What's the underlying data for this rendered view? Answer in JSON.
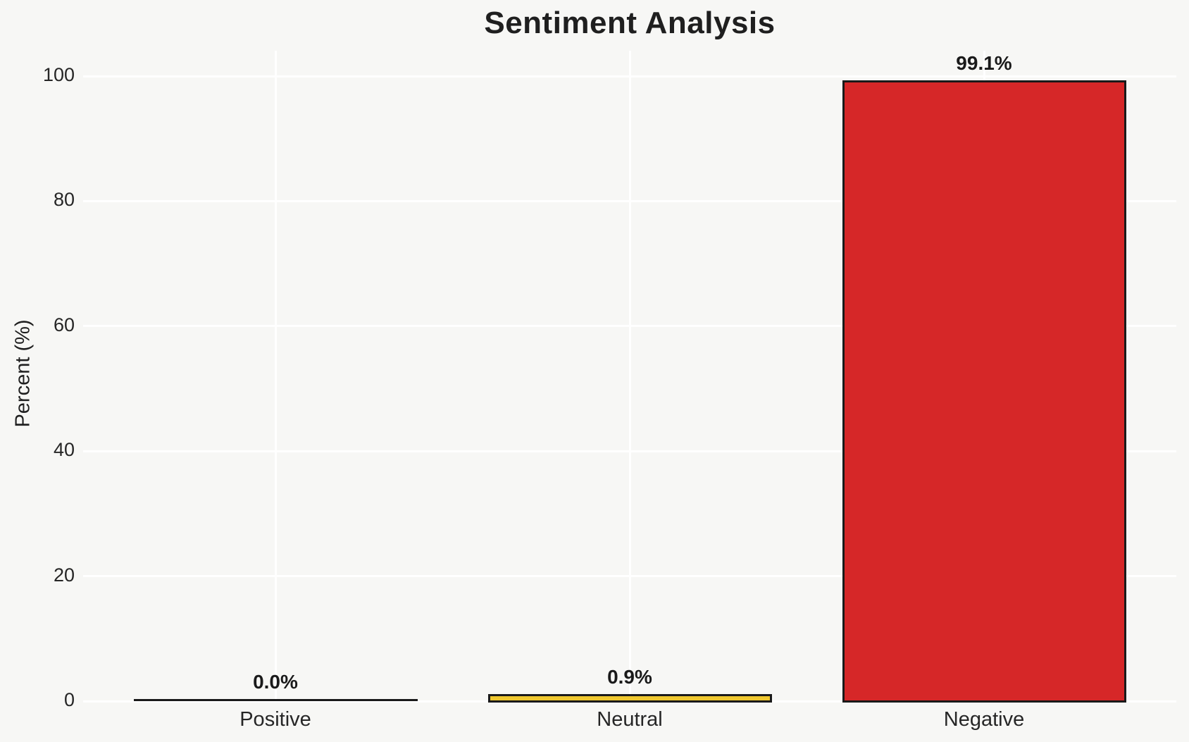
{
  "title": "Sentiment Analysis",
  "chart_data": {
    "type": "bar",
    "title": "Sentiment Analysis",
    "xlabel": "",
    "ylabel": "Percent (%)",
    "categories": [
      "Positive",
      "Neutral",
      "Negative"
    ],
    "values": [
      0.0,
      0.9,
      99.1
    ],
    "value_labels": [
      "0.0%",
      "0.9%",
      "99.1%"
    ],
    "bar_colors": [
      "none",
      "#EFC72E",
      "#D62728"
    ],
    "bar_edge_color": "#1a1a1a",
    "ylim": [
      0,
      104
    ],
    "yticks": [
      0,
      20,
      40,
      60,
      80,
      100
    ],
    "grid": true,
    "gridline_color": "#ffffff",
    "background_color": "#f7f7f5",
    "legend": "none"
  }
}
